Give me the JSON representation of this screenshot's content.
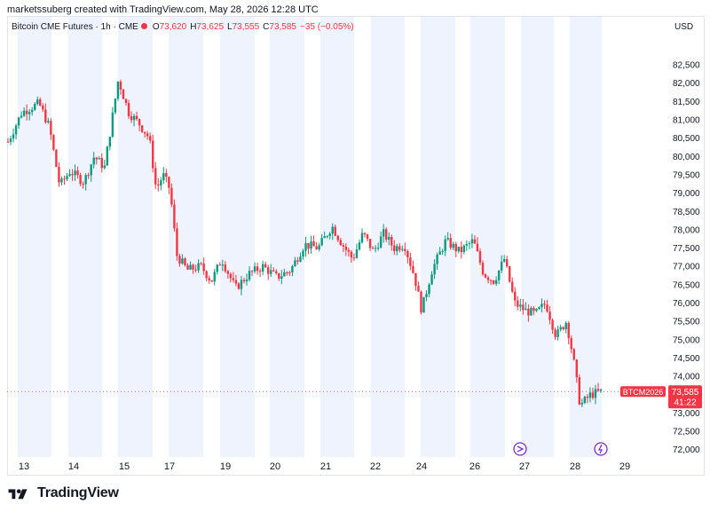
{
  "header": {
    "credit": "marketssuberg created with TradingView.com, May 28, 2026 12:28 UTC",
    "symbol": "Bitcoin CME Futures · 1h · CME",
    "o_label": "O",
    "o_value": "73,620",
    "h_label": "H",
    "h_value": "73,625",
    "l_label": "L",
    "l_value": "73,555",
    "c_label": "C",
    "c_value": "73,585",
    "change": "−35 (−0.05%)",
    "currency": "USD"
  },
  "footer": {
    "brand": "TradingView"
  },
  "colors": {
    "up": "#089981",
    "down": "#f23645",
    "session_band": "#eef3fd",
    "grid_text": "#131722",
    "price_line": "#f23645",
    "event_marker": "#7b2fd0"
  },
  "chart_data": {
    "type": "candlestick",
    "interval": "1h",
    "y_axis": {
      "ylim": [
        71800,
        83300
      ],
      "ticks": [
        "82,500",
        "82,000",
        "81,500",
        "81,000",
        "80,500",
        "80,000",
        "79,500",
        "79,000",
        "78,500",
        "78,000",
        "77,500",
        "77,000",
        "76,500",
        "76,000",
        "75,500",
        "75,000",
        "74,500",
        "74,000",
        "73,000",
        "72,500",
        "72,000"
      ],
      "tick_values": [
        82500,
        82000,
        81500,
        81000,
        80500,
        80000,
        79500,
        79000,
        78500,
        78000,
        77500,
        77000,
        76500,
        76000,
        75500,
        75000,
        74500,
        74000,
        73000,
        72500,
        72000
      ],
      "side": "right"
    },
    "x_axis": {
      "ticks": [
        "13",
        "14",
        "15",
        "17",
        "19",
        "20",
        "21",
        "22",
        "24",
        "26",
        "27",
        "28",
        "29"
      ]
    },
    "last_price_label": {
      "symbol": "BTCM2026",
      "price": "73,585",
      "countdown": "41:22",
      "value": 73585
    },
    "event_markers": [
      {
        "icon": "dividend-arrow-icon",
        "near_tick": "27"
      },
      {
        "icon": "lightning-icon",
        "near_tick": "28"
      }
    ],
    "price_path": [
      [
        0,
        80400
      ],
      [
        0.02,
        81200
      ],
      [
        0.045,
        81450
      ],
      [
        0.06,
        80800
      ],
      [
        0.075,
        79200
      ],
      [
        0.09,
        79600
      ],
      [
        0.11,
        79300
      ],
      [
        0.125,
        80000
      ],
      [
        0.14,
        79700
      ],
      [
        0.15,
        80900
      ],
      [
        0.16,
        82100
      ],
      [
        0.175,
        81200
      ],
      [
        0.19,
        80900
      ],
      [
        0.205,
        80500
      ],
      [
        0.215,
        79100
      ],
      [
        0.225,
        79500
      ],
      [
        0.235,
        79100
      ],
      [
        0.245,
        77300
      ],
      [
        0.26,
        76900
      ],
      [
        0.28,
        77000
      ],
      [
        0.295,
        76600
      ],
      [
        0.31,
        77200
      ],
      [
        0.33,
        76400
      ],
      [
        0.35,
        76800
      ],
      [
        0.37,
        77000
      ],
      [
        0.39,
        76700
      ],
      [
        0.41,
        76900
      ],
      [
        0.43,
        77600
      ],
      [
        0.45,
        77500
      ],
      [
        0.47,
        78100
      ],
      [
        0.485,
        77600
      ],
      [
        0.5,
        77200
      ],
      [
        0.515,
        77900
      ],
      [
        0.53,
        77400
      ],
      [
        0.545,
        77900
      ],
      [
        0.56,
        77500
      ],
      [
        0.575,
        77600
      ],
      [
        0.59,
        76700
      ],
      [
        0.6,
        75800
      ],
      [
        0.615,
        76900
      ],
      [
        0.635,
        77700
      ],
      [
        0.655,
        77400
      ],
      [
        0.675,
        77700
      ],
      [
        0.69,
        76800
      ],
      [
        0.705,
        76600
      ],
      [
        0.72,
        77200
      ],
      [
        0.735,
        76000
      ],
      [
        0.75,
        75800
      ],
      [
        0.765,
        75700
      ],
      [
        0.78,
        76000
      ],
      [
        0.795,
        75100
      ],
      [
        0.81,
        75500
      ],
      [
        0.82,
        74500
      ],
      [
        0.83,
        73200
      ],
      [
        0.845,
        73500
      ],
      [
        0.86,
        73585
      ]
    ]
  }
}
